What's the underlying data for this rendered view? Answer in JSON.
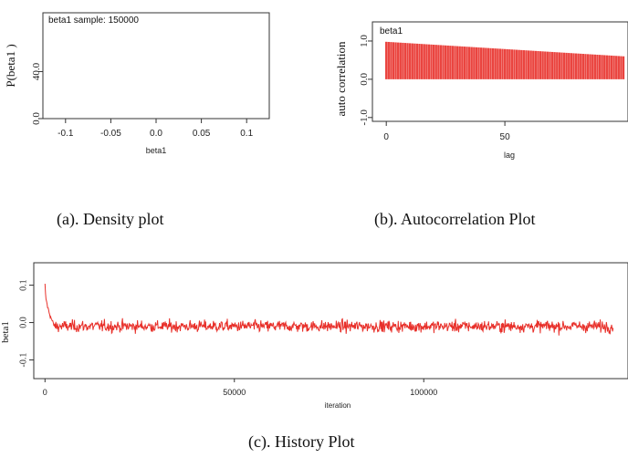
{
  "chart_data": [
    {
      "type": "line",
      "inset_label": "beta1 sample: 150000",
      "xlabel": "beta1",
      "ylabel": "P(beta1 )",
      "xlim": [
        -0.125,
        0.125
      ],
      "ylim": [
        0,
        90
      ],
      "xticks": [
        -0.1,
        -0.05,
        0.0,
        0.05,
        0.1
      ],
      "xtick_labels": [
        "-0.1",
        "-0.05",
        "0.0",
        "0.05",
        "0.1"
      ],
      "yticks": [
        0,
        40
      ],
      "ytick_labels": [
        "0.0",
        "40.0"
      ],
      "series": [
        {
          "x": [],
          "y": []
        }
      ],
      "grid": false,
      "caption": "(a). Density plot"
    },
    {
      "type": "bar",
      "inset_label": "beta1",
      "xlabel": "lag",
      "ylabel": "auto correlation",
      "xlim": [
        -2,
        100
      ],
      "ylim": [
        -1.1,
        1.5
      ],
      "xticks": [
        0,
        50
      ],
      "xtick_labels": [
        "0",
        "50"
      ],
      "yticks": [
        -1.0,
        0.0,
        1.0
      ],
      "ytick_labels": [
        "-1.0",
        "0.0",
        "1.0"
      ],
      "lag_max": 100,
      "acf_start": 0.98,
      "acf_end": 0.6,
      "color": "#e8302a",
      "grid": false,
      "caption": "(b). Autocorrelation Plot"
    },
    {
      "type": "line",
      "xlabel": "iteration",
      "ylabel": "beta1",
      "xlim": [
        -2000,
        152000
      ],
      "ylim": [
        -0.15,
        0.16
      ],
      "xticks": [
        0,
        50000,
        100000
      ],
      "xtick_labels": [
        "0",
        "50000",
        "100000"
      ],
      "yticks": [
        -0.1,
        0.0,
        0.1
      ],
      "ytick_labels": [
        "-0.1",
        "0.0",
        "0.1"
      ],
      "n_iterations": 150000,
      "start_value": 0.1,
      "burn_to": -0.01,
      "mean": -0.01,
      "noise_sd": 0.011,
      "color": "#e8302a",
      "grid": false,
      "caption": "(c). History Plot"
    }
  ]
}
